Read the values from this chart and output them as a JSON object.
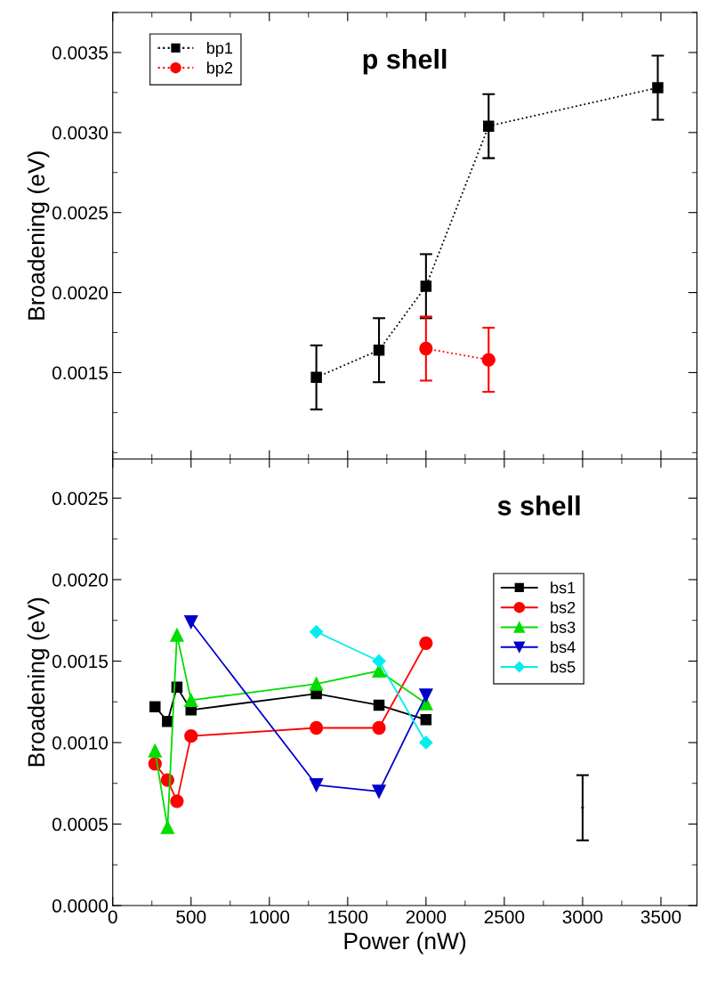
{
  "chart_data": [
    {
      "type": "scatter",
      "ylabel": "Broadening (eV)",
      "annotations": [
        "p shell"
      ],
      "xlim": [
        0,
        3730
      ],
      "ylim": [
        0.00096,
        0.00375
      ],
      "xticks": [
        0,
        500,
        1000,
        1500,
        2000,
        2500,
        3000,
        3500
      ],
      "yticks": [
        {
          "value": 0.0015,
          "label": "0.0015"
        },
        {
          "value": 0.002,
          "label": "0.0020"
        },
        {
          "value": 0.0025,
          "label": "0.0025"
        },
        {
          "value": 0.003,
          "label": "0.0030"
        },
        {
          "value": 0.0035,
          "label": "0.0035"
        }
      ],
      "tick_labels": "y",
      "legend": "top left",
      "grid": false,
      "line_style": "dotted",
      "series": [
        {
          "name": "bp1",
          "type": "line",
          "color": "#000000",
          "marker": "square",
          "x": [
            1300,
            1700,
            2000,
            2400,
            3480
          ],
          "values": [
            0.00147,
            0.00164,
            0.00204,
            0.00304,
            0.00328
          ],
          "errors": [
            0.0002,
            0.0002,
            0.0002,
            0.0002,
            0.0002
          ]
        },
        {
          "name": "bp2",
          "type": "line",
          "color": "#ff0000",
          "marker": "circle",
          "x": [
            2000,
            2400
          ],
          "values": [
            0.00165,
            0.00158
          ],
          "errors": [
            0.0002,
            0.0002
          ]
        }
      ]
    },
    {
      "type": "line",
      "xlabel": "Power (nW)",
      "ylabel": "Broadening (eV)",
      "annotations": [
        "s shell"
      ],
      "xlim": [
        0,
        3730
      ],
      "ylim": [
        0,
        0.00274
      ],
      "xticks": [
        0,
        500,
        1000,
        1500,
        2000,
        2500,
        3000,
        3500
      ],
      "yticks": [
        {
          "value": 0,
          "label": "0.0000"
        },
        {
          "value": 0.0005,
          "label": "0.0005"
        },
        {
          "value": 0.001,
          "label": "0.0010"
        },
        {
          "value": 0.0015,
          "label": "0.0015"
        },
        {
          "value": 0.002,
          "label": "0.0020"
        },
        {
          "value": 0.0025,
          "label": "0.0025"
        }
      ],
      "legend": "right",
      "grid": false,
      "line_style": "solid",
      "series": [
        {
          "name": "bs1",
          "color": "#000000",
          "marker": "square",
          "x": [
            270,
            350,
            410,
            500,
            1300,
            1700,
            2000
          ],
          "values": [
            0.00122,
            0.00113,
            0.00134,
            0.0012,
            0.0013,
            0.00123,
            0.00114
          ]
        },
        {
          "name": "bs2",
          "color": "#ff0000",
          "marker": "circle",
          "x": [
            270,
            350,
            410,
            500,
            1300,
            1700,
            2000
          ],
          "values": [
            0.00087,
            0.00077,
            0.00064,
            0.00104,
            0.00109,
            0.00109,
            0.00161
          ]
        },
        {
          "name": "bs3",
          "color": "#00dd00",
          "marker": "triangle",
          "x": [
            270,
            350,
            410,
            500,
            1300,
            1700,
            2000
          ],
          "values": [
            0.00095,
            0.00048,
            0.00166,
            0.00126,
            0.00136,
            0.00144,
            0.00124
          ]
        },
        {
          "name": "bs4",
          "color": "#0000cc",
          "marker": "triangle_down",
          "x": [
            500,
            1300,
            1700,
            2000
          ],
          "values": [
            0.00174,
            0.00074,
            0.0007,
            0.00129
          ]
        },
        {
          "name": "bs5",
          "color": "#00eeee",
          "marker": "diamond",
          "x": [
            1300,
            1700,
            2000
          ],
          "values": [
            0.00168,
            0.0015,
            0.001
          ]
        },
        {
          "type": "scatter",
          "color": "#000000",
          "marker": "none",
          "x": [
            3000
          ],
          "values": [
            0.0006
          ],
          "errors": [
            0.0002
          ]
        }
      ]
    }
  ]
}
